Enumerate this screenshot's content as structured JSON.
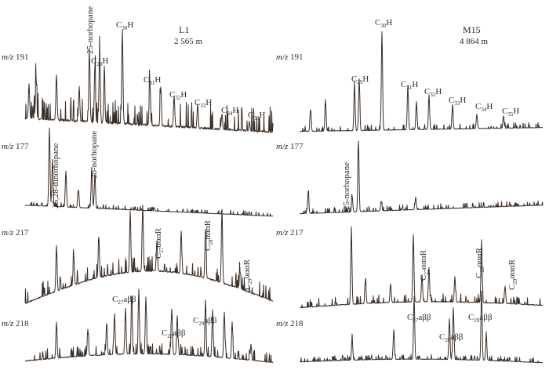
{
  "chart_data": {
    "type": "line",
    "description_free": true,
    "panels": [
      {
        "column": "left",
        "well": "L1",
        "depth": "2 565 m",
        "rows": [
          {
            "mz": "m/z 191",
            "peak_labels": [
              "C30H",
              "C29H",
              "C31H",
              "C32H",
              "C33H",
              "C34H",
              "C35H"
            ],
            "other_labels": [
              "25-norhopane"
            ]
          },
          {
            "mz": "m/z 177",
            "peak_labels": [],
            "other_labels": [
              "25,28-dinorhopane",
              "25-norhopane"
            ]
          },
          {
            "mz": "m/z 217",
            "peak_labels": [
              "C27αααR",
              "C28αααR",
              "C29αααR"
            ],
            "other_labels": []
          },
          {
            "mz": "m/z 218",
            "peak_labels": [
              "C27aββ",
              "C28aββ",
              "C29aββ"
            ],
            "other_labels": []
          }
        ]
      },
      {
        "column": "right",
        "well": "M15",
        "depth": "4 864 m",
        "rows": [
          {
            "mz": "m/z 191",
            "peak_labels": [
              "C30H",
              "C29H",
              "C31H",
              "C32H",
              "C33H",
              "C34H",
              "C35H"
            ],
            "other_labels": []
          },
          {
            "mz": "m/z 177",
            "peak_labels": [],
            "other_labels": [
              "25-norhopane"
            ]
          },
          {
            "mz": "m/z 217",
            "peak_labels": [
              "C27αααR",
              "C28αααR",
              "C29αααR"
            ],
            "other_labels": []
          },
          {
            "mz": "m/z 218",
            "peak_labels": [
              "C27aββ",
              "C28aββ",
              "C29aββ"
            ],
            "other_labels": []
          }
        ]
      }
    ]
  },
  "labels": {
    "left_well": "L1",
    "left_depth": "2 565 m",
    "right_well": "M15",
    "right_depth": "4 864 m",
    "norhopane": "25-norhopane",
    "dinorhopane": "25,28-dinorhopane",
    "m191": {
      "mz": "m/z",
      "num": "191"
    },
    "m177": {
      "mz": "m/z",
      "num": "177"
    },
    "m217": {
      "mz": "m/z",
      "num": "217"
    },
    "m218": {
      "mz": "m/z",
      "num": "218"
    },
    "hopanes": {
      "c29": {
        "base": "C",
        "sub": "29",
        "suf": "H"
      },
      "c30": {
        "base": "C",
        "sub": "30",
        "suf": "H"
      },
      "c31": {
        "base": "C",
        "sub": "31",
        "suf": "H"
      },
      "c32": {
        "base": "C",
        "sub": "32",
        "suf": "H"
      },
      "c33": {
        "base": "C",
        "sub": "33",
        "suf": "H"
      },
      "c34": {
        "base": "C",
        "sub": "34",
        "suf": "H"
      },
      "c35": {
        "base": "C",
        "sub": "35",
        "suf": "H"
      }
    },
    "steranes_aaa": {
      "c27": {
        "base": "C",
        "sub": "27",
        "suf": "αααR"
      },
      "c28": {
        "base": "C",
        "sub": "28",
        "suf": "αααR"
      },
      "c29": {
        "base": "C",
        "sub": "29",
        "suf": "αααR"
      }
    },
    "steranes_abb": {
      "c27": {
        "base": "C",
        "sub": "27",
        "suf": "aββ"
      },
      "c28": {
        "base": "C",
        "sub": "28",
        "suf": "aββ"
      },
      "c29": {
        "base": "C",
        "sub": "29",
        "suf": "aββ"
      }
    }
  },
  "colors": {
    "trace": "#3a2e26",
    "text": "#2a2a2a"
  }
}
